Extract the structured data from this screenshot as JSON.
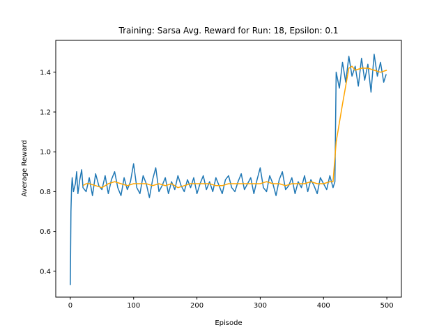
{
  "chart_data": {
    "type": "line",
    "title": "Training: Sarsa Avg. Reward for Run: 18, Epsilon: 0.1",
    "xlabel": "Episode",
    "ylabel": "Average Reward",
    "xlim": [
      -23,
      523
    ],
    "ylim": [
      0.27,
      1.56
    ],
    "xticks": [
      0,
      100,
      200,
      300,
      400,
      500
    ],
    "xtick_labels": [
      "0",
      "100",
      "200",
      "300",
      "400",
      "500"
    ],
    "yticks": [
      0.4,
      0.6,
      0.8,
      1.0,
      1.2,
      1.4
    ],
    "ytick_labels": [
      "0.4",
      "0.6",
      "0.8",
      "1.0",
      "1.2",
      "1.4"
    ],
    "grid": false,
    "series": [
      {
        "color": "#1f77b4",
        "x": [
          0,
          1,
          2,
          3,
          5,
          8,
          10,
          12,
          15,
          18,
          20,
          25,
          30,
          35,
          40,
          45,
          50,
          55,
          60,
          65,
          70,
          75,
          80,
          85,
          90,
          95,
          100,
          105,
          110,
          115,
          120,
          125,
          130,
          135,
          140,
          145,
          150,
          155,
          160,
          165,
          170,
          175,
          180,
          185,
          190,
          195,
          200,
          205,
          210,
          215,
          220,
          225,
          230,
          235,
          240,
          245,
          250,
          255,
          260,
          265,
          270,
          275,
          280,
          285,
          290,
          295,
          300,
          305,
          310,
          315,
          320,
          325,
          330,
          335,
          340,
          345,
          350,
          355,
          360,
          365,
          370,
          375,
          380,
          385,
          390,
          395,
          400,
          405,
          410,
          415,
          418,
          420,
          425,
          430,
          435,
          440,
          445,
          450,
          455,
          460,
          465,
          470,
          475,
          480,
          485,
          490,
          495,
          499
        ],
        "y": [
          0.33,
          0.7,
          0.82,
          0.87,
          0.8,
          0.84,
          0.9,
          0.79,
          0.86,
          0.91,
          0.82,
          0.8,
          0.87,
          0.78,
          0.89,
          0.83,
          0.81,
          0.88,
          0.79,
          0.86,
          0.9,
          0.82,
          0.78,
          0.87,
          0.81,
          0.85,
          0.94,
          0.82,
          0.79,
          0.88,
          0.84,
          0.77,
          0.86,
          0.92,
          0.8,
          0.83,
          0.87,
          0.79,
          0.85,
          0.81,
          0.88,
          0.83,
          0.8,
          0.86,
          0.82,
          0.87,
          0.79,
          0.84,
          0.88,
          0.81,
          0.85,
          0.8,
          0.87,
          0.83,
          0.79,
          0.86,
          0.88,
          0.82,
          0.8,
          0.85,
          0.89,
          0.81,
          0.84,
          0.87,
          0.79,
          0.86,
          0.92,
          0.82,
          0.8,
          0.88,
          0.84,
          0.78,
          0.86,
          0.9,
          0.81,
          0.83,
          0.87,
          0.79,
          0.85,
          0.82,
          0.88,
          0.8,
          0.86,
          0.83,
          0.79,
          0.87,
          0.84,
          0.81,
          0.88,
          0.82,
          0.85,
          1.4,
          1.32,
          1.45,
          1.35,
          1.48,
          1.38,
          1.43,
          1.33,
          1.47,
          1.36,
          1.44,
          1.3,
          1.49,
          1.38,
          1.45,
          1.35,
          1.39
        ]
      },
      {
        "color": "#ffa500",
        "x": [
          20,
          25,
          30,
          40,
          50,
          60,
          70,
          80,
          90,
          100,
          110,
          120,
          130,
          140,
          150,
          160,
          170,
          180,
          190,
          200,
          210,
          220,
          230,
          240,
          250,
          260,
          270,
          280,
          290,
          300,
          310,
          320,
          330,
          340,
          350,
          360,
          370,
          380,
          390,
          400,
          410,
          415,
          420,
          430,
          440,
          445,
          450,
          460,
          470,
          480,
          490,
          500
        ],
        "y": [
          0.83,
          0.84,
          0.84,
          0.83,
          0.82,
          0.84,
          0.85,
          0.84,
          0.83,
          0.84,
          0.84,
          0.84,
          0.83,
          0.84,
          0.83,
          0.84,
          0.82,
          0.83,
          0.84,
          0.84,
          0.84,
          0.84,
          0.83,
          0.83,
          0.84,
          0.84,
          0.84,
          0.84,
          0.84,
          0.84,
          0.85,
          0.84,
          0.84,
          0.83,
          0.84,
          0.84,
          0.84,
          0.85,
          0.84,
          0.84,
          0.85,
          0.85,
          1.05,
          1.24,
          1.42,
          1.43,
          1.41,
          1.42,
          1.42,
          1.41,
          1.4,
          1.41
        ]
      }
    ]
  }
}
